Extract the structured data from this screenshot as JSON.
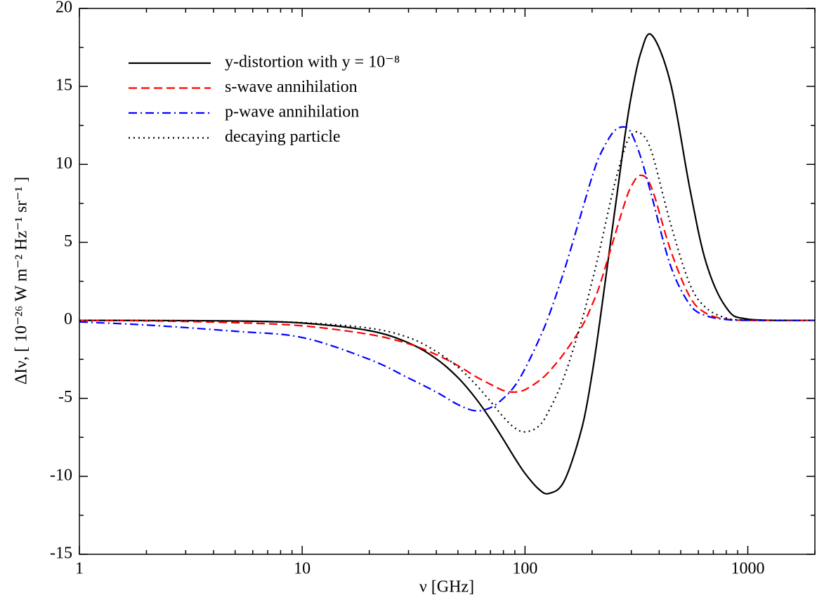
{
  "chart_data": {
    "type": "line",
    "xlabel": "ν [GHz]",
    "ylabel": "ΔIν, [ 10⁻²⁶ W m⁻² Hz⁻¹ sr⁻¹ ]",
    "xscale": "log",
    "xlim": [
      1,
      2000
    ],
    "ylim": [
      -15,
      20
    ],
    "xticks": [
      1,
      10,
      100,
      1000
    ],
    "yticks": [
      -15,
      -10,
      -5,
      0,
      5,
      10,
      15,
      20
    ],
    "legend": "upper left",
    "x": [
      1,
      2,
      5,
      10,
      20,
      30,
      40,
      50,
      60,
      70,
      80,
      90,
      100,
      115,
      128,
      150,
      180,
      200,
      217,
      250,
      280,
      300,
      330,
      370,
      450,
      550,
      650,
      800,
      1000,
      2000
    ],
    "series": [
      {
        "name": "y-distortion with y = 10⁻⁸",
        "color": "#000000",
        "linestyle": "solid",
        "values": [
          0,
          -0.01,
          -0.04,
          -0.17,
          -0.66,
          -1.44,
          -2.47,
          -3.67,
          -4.99,
          -6.34,
          -7.64,
          -8.83,
          -9.81,
          -10.81,
          -11.1,
          -10.3,
          -6.9,
          -3.44,
          0,
          6.5,
          11.7,
          14.4,
          17.1,
          18.3,
          15.2,
          8.4,
          3.69,
          0.82,
          0.08,
          0
        ]
      },
      {
        "name": "s-wave annihilation",
        "color": "#ff0000",
        "linestyle": "dashed",
        "values": [
          0,
          -0.03,
          -0.15,
          -0.35,
          -0.9,
          -1.5,
          -2.2,
          -2.9,
          -3.6,
          -4.1,
          -4.5,
          -4.6,
          -4.45,
          -3.9,
          -3.3,
          -2.1,
          -0.4,
          1.0,
          2.3,
          5.2,
          7.5,
          8.6,
          9.3,
          8.5,
          4.5,
          1.5,
          0.45,
          0.08,
          0,
          0
        ]
      },
      {
        "name": "p-wave annihilation",
        "color": "#0000ff",
        "linestyle": "dashdot",
        "values": [
          -0.1,
          -0.3,
          -0.7,
          -1.1,
          -2.5,
          -3.7,
          -4.6,
          -5.4,
          -5.8,
          -5.6,
          -5.0,
          -4.2,
          -3.1,
          -1.3,
          0.3,
          3.2,
          7.0,
          9.2,
          10.6,
          12.1,
          12.4,
          12.0,
          10.5,
          8.0,
          3.5,
          1.0,
          0.3,
          0.05,
          0,
          0
        ]
      },
      {
        "name": "decaying particle",
        "color": "#000000",
        "linestyle": "dotted",
        "values": [
          0,
          -0.01,
          -0.05,
          -0.15,
          -0.5,
          -1.1,
          -2.0,
          -3.0,
          -4.1,
          -5.2,
          -6.2,
          -6.9,
          -7.15,
          -6.8,
          -5.8,
          -3.6,
          0,
          2.5,
          4.6,
          8.5,
          11.0,
          11.9,
          12.0,
          10.8,
          6.2,
          2.3,
          0.8,
          0.15,
          0.02,
          0
        ]
      }
    ]
  }
}
